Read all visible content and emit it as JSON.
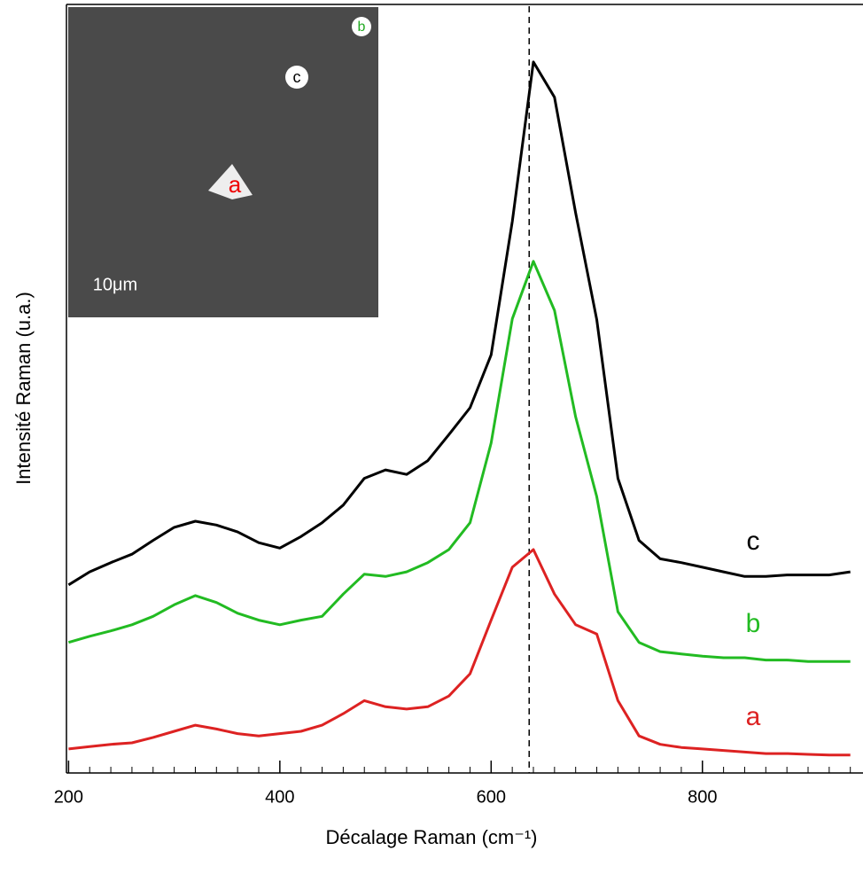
{
  "chart_data": {
    "type": "line",
    "xlabel": "Décalage Raman (cm⁻¹)",
    "ylabel": "Intensité Raman (u.a.)",
    "xlim": [
      198,
      952
    ],
    "ylim": [
      0,
      100
    ],
    "xticks": [
      200,
      400,
      600,
      800
    ],
    "xminorticks": [
      220,
      240,
      260,
      280,
      300,
      320,
      340,
      360,
      380,
      420,
      440,
      460,
      480,
      500,
      520,
      540,
      560,
      580,
      620,
      640,
      660,
      680,
      700,
      720,
      740,
      760,
      780,
      820,
      840,
      860,
      880,
      900,
      920,
      940
    ],
    "reference_line": 636,
    "x": [
      200,
      220,
      240,
      260,
      280,
      300,
      320,
      340,
      360,
      380,
      400,
      420,
      440,
      460,
      480,
      500,
      520,
      540,
      560,
      580,
      600,
      620,
      640,
      660,
      680,
      700,
      720,
      740,
      760,
      780,
      800,
      820,
      840,
      860,
      880,
      900,
      920,
      940
    ],
    "series": [
      {
        "name": "c",
        "color": "#000000",
        "values": [
          24.3,
          26.0,
          27.2,
          28.3,
          30.1,
          31.8,
          32.6,
          32.1,
          31.2,
          29.8,
          29.1,
          30.6,
          32.4,
          34.7,
          38.2,
          39.3,
          38.7,
          40.5,
          43.9,
          47.4,
          54.3,
          71.7,
          92.5,
          87.9,
          72.8,
          58.9,
          38.2,
          30.1,
          27.7,
          27.2,
          26.6,
          26.0,
          25.4,
          25.4,
          25.6,
          25.6,
          25.6,
          26.0
        ]
      },
      {
        "name": "b",
        "color": "#22bb22",
        "values": [
          16.8,
          17.6,
          18.3,
          19.1,
          20.2,
          21.7,
          22.9,
          22.0,
          20.6,
          19.7,
          19.1,
          19.7,
          20.2,
          23.1,
          25.7,
          25.4,
          26.0,
          27.2,
          28.9,
          32.4,
          42.8,
          59.0,
          66.5,
          60.1,
          46.2,
          35.8,
          20.8,
          16.8,
          15.6,
          15.3,
          15.0,
          14.8,
          14.8,
          14.5,
          14.5,
          14.3,
          14.3,
          14.3
        ]
      },
      {
        "name": "a",
        "color": "#dd2222",
        "values": [
          2.9,
          3.2,
          3.5,
          3.7,
          4.4,
          5.2,
          6.0,
          5.5,
          4.9,
          4.6,
          4.9,
          5.2,
          6.0,
          7.5,
          9.2,
          8.4,
          8.1,
          8.4,
          9.8,
          12.7,
          19.7,
          26.6,
          28.9,
          23.1,
          19.1,
          17.9,
          9.2,
          4.6,
          3.5,
          3.1,
          2.9,
          2.7,
          2.5,
          2.3,
          2.3,
          2.2,
          2.1,
          2.1
        ]
      }
    ],
    "inset_labels": [
      "a",
      "b",
      "c",
      "10μm"
    ]
  }
}
